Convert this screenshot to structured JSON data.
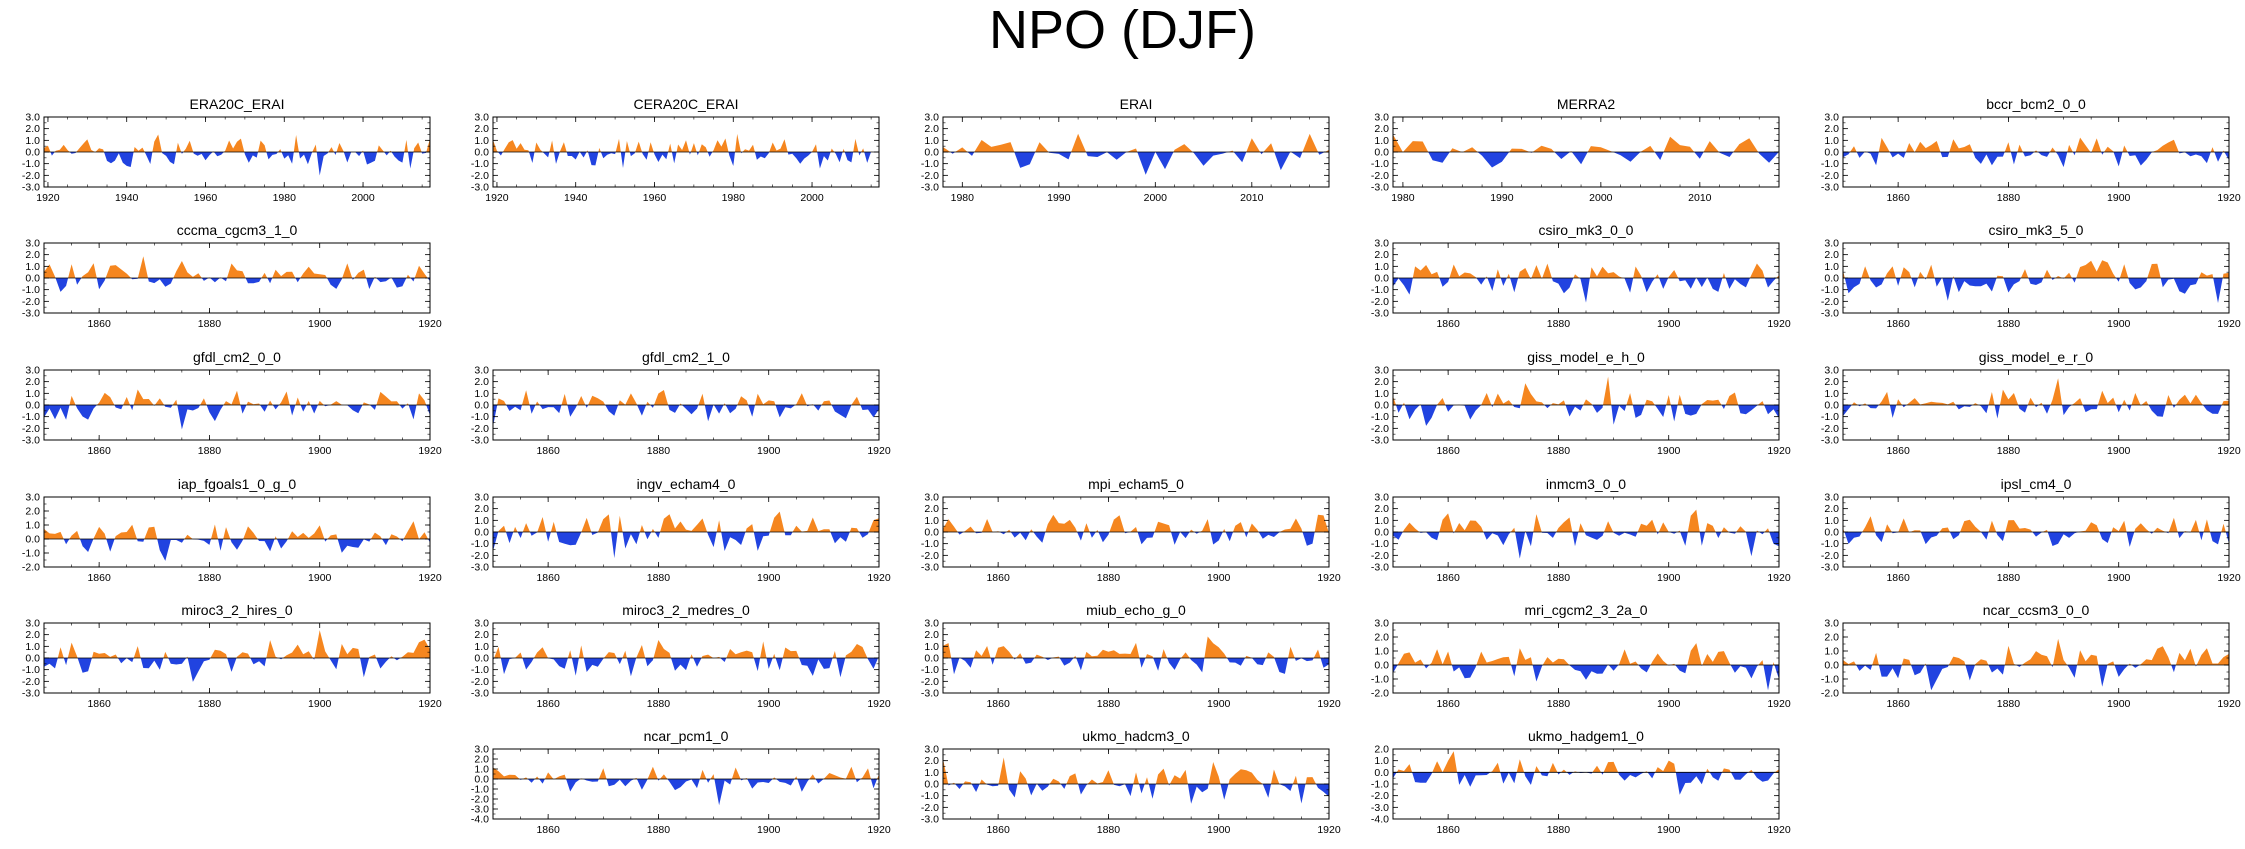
{
  "title": "NPO (DJF)",
  "colors": {
    "positive": "#f5861f",
    "negative": "#2143e0",
    "frame": "#000000",
    "zero_line": "#000000"
  },
  "chart_data": [
    {
      "type": "area",
      "row": 0,
      "col": 0,
      "title": "ERA20C_ERAI",
      "x_range": [
        1919,
        2017
      ],
      "x_ticks": [
        1920,
        1940,
        1960,
        1980,
        2000
      ],
      "y_ticks": [
        "3.0",
        "2.0",
        "1.0",
        "0.0",
        "-1.0",
        "-2.0",
        "-3.0"
      ],
      "ylim": [
        -3,
        3
      ],
      "seed": 11,
      "amp": 0.9,
      "step": 1,
      "bias": 0.02
    },
    {
      "type": "area",
      "row": 0,
      "col": 1,
      "title": "CERA20C_ERAI",
      "x_range": [
        1919,
        2017
      ],
      "x_ticks": [
        1920,
        1940,
        1960,
        1980,
        2000
      ],
      "y_ticks": [
        "3.0",
        "2.0",
        "1.0",
        "0.0",
        "-1.0",
        "-2.0",
        "-3.0"
      ],
      "ylim": [
        -3,
        3
      ],
      "seed": 23,
      "amp": 0.9,
      "step": 1,
      "bias": 0.02
    },
    {
      "type": "area",
      "row": 0,
      "col": 2,
      "title": "ERAI",
      "x_range": [
        1978,
        2018
      ],
      "x_ticks": [
        1980,
        1990,
        2000,
        2010
      ],
      "y_ticks": [
        "3.0",
        "2.0",
        "1.0",
        "0.0",
        "-1.0",
        "-2.0",
        "-3.0"
      ],
      "ylim": [
        -3,
        3
      ],
      "seed": 37,
      "amp": 1.2,
      "step": 1,
      "bias": 0
    },
    {
      "type": "area",
      "row": 0,
      "col": 3,
      "title": "MERRA2",
      "x_range": [
        1979,
        2018
      ],
      "x_ticks": [
        1980,
        1990,
        2000,
        2010
      ],
      "y_ticks": [
        "3.0",
        "2.0",
        "1.0",
        "0.0",
        "-1.0",
        "-2.0",
        "-3.0"
      ],
      "ylim": [
        -3,
        3
      ],
      "seed": 41,
      "amp": 1.2,
      "step": 1,
      "bias": 0
    },
    {
      "type": "area",
      "row": 0,
      "col": 4,
      "title": "bccr_bcm2_0_0",
      "x_range": [
        1850,
        1920
      ],
      "x_ticks": [
        1860,
        1880,
        1900,
        1920
      ],
      "y_ticks": [
        "3.0",
        "2.0",
        "1.0",
        "0.0",
        "-1.0",
        "-2.0",
        "-3.0"
      ],
      "ylim": [
        -3,
        3
      ],
      "seed": 53,
      "amp": 1.0,
      "step": 1,
      "bias": 0
    },
    {
      "type": "area",
      "row": 1,
      "col": 0,
      "title": "cccma_cgcm3_1_0",
      "x_range": [
        1850,
        1920
      ],
      "x_ticks": [
        1860,
        1880,
        1900,
        1920
      ],
      "y_ticks": [
        "3.0",
        "2.0",
        "1.0",
        "0.0",
        "-1.0",
        "-2.0",
        "-3.0"
      ],
      "ylim": [
        -3,
        3
      ],
      "seed": 61,
      "amp": 1.0,
      "step": 1,
      "bias": 0
    },
    {
      "type": "area",
      "row": 1,
      "col": 3,
      "title": "csiro_mk3_0_0",
      "x_range": [
        1850,
        1920
      ],
      "x_ticks": [
        1860,
        1880,
        1900,
        1920
      ],
      "y_ticks": [
        "3.0",
        "2.0",
        "1.0",
        "0.0",
        "-1.0",
        "-2.0",
        "-3.0"
      ],
      "ylim": [
        -3,
        3
      ],
      "seed": 71,
      "amp": 1.0,
      "step": 1,
      "bias": 0
    },
    {
      "type": "area",
      "row": 1,
      "col": 4,
      "title": "csiro_mk3_5_0",
      "x_range": [
        1850,
        1920
      ],
      "x_ticks": [
        1860,
        1880,
        1900,
        1920
      ],
      "y_ticks": [
        "3.0",
        "2.0",
        "1.0",
        "0.0",
        "-1.0",
        "-2.0",
        "-3.0"
      ],
      "ylim": [
        -3,
        3
      ],
      "seed": 79,
      "amp": 1.0,
      "step": 1,
      "bias": 0
    },
    {
      "type": "area",
      "row": 2,
      "col": 0,
      "title": "gfdl_cm2_0_0",
      "x_range": [
        1850,
        1920
      ],
      "x_ticks": [
        1860,
        1880,
        1900,
        1920
      ],
      "y_ticks": [
        "3.0",
        "2.0",
        "1.0",
        "0.0",
        "-1.0",
        "-2.0",
        "-3.0"
      ],
      "ylim": [
        -3,
        3
      ],
      "seed": 83,
      "amp": 1.0,
      "step": 1,
      "bias": 0
    },
    {
      "type": "area",
      "row": 2,
      "col": 1,
      "title": "gfdl_cm2_1_0",
      "x_range": [
        1850,
        1920
      ],
      "x_ticks": [
        1860,
        1880,
        1900,
        1920
      ],
      "y_ticks": [
        "3.0",
        "2.0",
        "1.0",
        "0.0",
        "-1.0",
        "-2.0",
        "-3.0"
      ],
      "ylim": [
        -3,
        3
      ],
      "seed": 89,
      "amp": 1.0,
      "step": 1,
      "bias": 0
    },
    {
      "type": "area",
      "row": 2,
      "col": 3,
      "title": "giss_model_e_h_0",
      "x_range": [
        1850,
        1920
      ],
      "x_ticks": [
        1860,
        1880,
        1900,
        1920
      ],
      "y_ticks": [
        "3.0",
        "2.0",
        "1.0",
        "0.0",
        "-1.0",
        "-2.0",
        "-3.0"
      ],
      "ylim": [
        -3,
        3
      ],
      "seed": 97,
      "amp": 1.0,
      "step": 1,
      "bias": 0
    },
    {
      "type": "area",
      "row": 2,
      "col": 4,
      "title": "giss_model_e_r_0",
      "x_range": [
        1850,
        1920
      ],
      "x_ticks": [
        1860,
        1880,
        1900,
        1920
      ],
      "y_ticks": [
        "3.0",
        "2.0",
        "1.0",
        "0.0",
        "-1.0",
        "-2.0",
        "-3.0"
      ],
      "ylim": [
        -3,
        3
      ],
      "seed": 101,
      "amp": 1.0,
      "step": 1,
      "bias": 0
    },
    {
      "type": "area",
      "row": 3,
      "col": 0,
      "title": "iap_fgoals1_0_g_0",
      "x_range": [
        1850,
        1920
      ],
      "x_ticks": [
        1860,
        1880,
        1900,
        1920
      ],
      "y_ticks": [
        "3.0",
        "2.0",
        "1.0",
        "0.0",
        "-1.0",
        "-2.0"
      ],
      "ylim": [
        -2,
        3
      ],
      "seed": 103,
      "amp": 0.9,
      "step": 1,
      "bias": 0
    },
    {
      "type": "area",
      "row": 3,
      "col": 1,
      "title": "ingv_echam4_0",
      "x_range": [
        1850,
        1920
      ],
      "x_ticks": [
        1860,
        1880,
        1900,
        1920
      ],
      "y_ticks": [
        "3.0",
        "2.0",
        "1.0",
        "0.0",
        "-1.0",
        "-2.0",
        "-3.0"
      ],
      "ylim": [
        -3,
        3
      ],
      "seed": 107,
      "amp": 1.0,
      "step": 1,
      "bias": 0
    },
    {
      "type": "area",
      "row": 3,
      "col": 2,
      "title": "mpi_echam5_0",
      "x_range": [
        1850,
        1920
      ],
      "x_ticks": [
        1860,
        1880,
        1900,
        1920
      ],
      "y_ticks": [
        "3.0",
        "2.0",
        "1.0",
        "0.0",
        "-1.0",
        "-2.0",
        "-3.0"
      ],
      "ylim": [
        -3,
        3
      ],
      "seed": 109,
      "amp": 1.0,
      "step": 1,
      "bias": 0
    },
    {
      "type": "area",
      "row": 3,
      "col": 3,
      "title": "inmcm3_0_0",
      "x_range": [
        1850,
        1920
      ],
      "x_ticks": [
        1860,
        1880,
        1900,
        1920
      ],
      "y_ticks": [
        "3.0",
        "2.0",
        "1.0",
        "0.0",
        "-1.0",
        "-2.0",
        "-3.0"
      ],
      "ylim": [
        -3,
        3
      ],
      "seed": 113,
      "amp": 1.0,
      "step": 1,
      "bias": 0
    },
    {
      "type": "area",
      "row": 3,
      "col": 4,
      "title": "ipsl_cm4_0",
      "x_range": [
        1850,
        1920
      ],
      "x_ticks": [
        1860,
        1880,
        1900,
        1920
      ],
      "y_ticks": [
        "3.0",
        "2.0",
        "1.0",
        "0.0",
        "-1.0",
        "-2.0",
        "-3.0"
      ],
      "ylim": [
        -3,
        3
      ],
      "seed": 127,
      "amp": 1.0,
      "step": 1,
      "bias": 0
    },
    {
      "type": "area",
      "row": 4,
      "col": 0,
      "title": "miroc3_2_hires_0",
      "x_range": [
        1850,
        1920
      ],
      "x_ticks": [
        1860,
        1880,
        1900,
        1920
      ],
      "y_ticks": [
        "3.0",
        "2.0",
        "1.0",
        "0.0",
        "-1.0",
        "-2.0",
        "-3.0"
      ],
      "ylim": [
        -3,
        3
      ],
      "seed": 131,
      "amp": 1.0,
      "step": 1,
      "bias": 0
    },
    {
      "type": "area",
      "row": 4,
      "col": 1,
      "title": "miroc3_2_medres_0",
      "x_range": [
        1850,
        1920
      ],
      "x_ticks": [
        1860,
        1880,
        1900,
        1920
      ],
      "y_ticks": [
        "3.0",
        "2.0",
        "1.0",
        "0.0",
        "-1.0",
        "-2.0",
        "-3.0"
      ],
      "ylim": [
        -3,
        3
      ],
      "seed": 137,
      "amp": 1.0,
      "step": 1,
      "bias": 0
    },
    {
      "type": "area",
      "row": 4,
      "col": 2,
      "title": "miub_echo_g_0",
      "x_range": [
        1850,
        1920
      ],
      "x_ticks": [
        1860,
        1880,
        1900,
        1920
      ],
      "y_ticks": [
        "3.0",
        "2.0",
        "1.0",
        "0.0",
        "-1.0",
        "-2.0",
        "-3.0"
      ],
      "ylim": [
        -3,
        3
      ],
      "seed": 139,
      "amp": 1.0,
      "step": 1,
      "bias": 0
    },
    {
      "type": "area",
      "row": 4,
      "col": 3,
      "title": "mri_cgcm2_3_2a_0",
      "x_range": [
        1850,
        1920
      ],
      "x_ticks": [
        1860,
        1880,
        1900,
        1920
      ],
      "y_ticks": [
        "3.0",
        "2.0",
        "1.0",
        "0.0",
        "-1.0",
        "-2.0"
      ],
      "ylim": [
        -2,
        3
      ],
      "seed": 149,
      "amp": 0.9,
      "step": 1,
      "bias": 0
    },
    {
      "type": "area",
      "row": 4,
      "col": 4,
      "title": "ncar_ccsm3_0_0",
      "x_range": [
        1850,
        1920
      ],
      "x_ticks": [
        1860,
        1880,
        1900,
        1920
      ],
      "y_ticks": [
        "3.0",
        "2.0",
        "1.0",
        "0.0",
        "-1.0",
        "-2.0"
      ],
      "ylim": [
        -2,
        3
      ],
      "seed": 151,
      "amp": 0.9,
      "step": 1,
      "bias": 0
    },
    {
      "type": "area",
      "row": 5,
      "col": 1,
      "title": "ncar_pcm1_0",
      "x_range": [
        1850,
        1920
      ],
      "x_ticks": [
        1860,
        1880,
        1900,
        1920
      ],
      "y_ticks": [
        "3.0",
        "2.0",
        "1.0",
        "0.0",
        "-1.0",
        "-2.0",
        "-3.0",
        "-4.0"
      ],
      "ylim": [
        -4,
        3
      ],
      "seed": 157,
      "amp": 1.0,
      "step": 1,
      "bias": 0
    },
    {
      "type": "area",
      "row": 5,
      "col": 2,
      "title": "ukmo_hadcm3_0",
      "x_range": [
        1850,
        1920
      ],
      "x_ticks": [
        1860,
        1880,
        1900,
        1920
      ],
      "y_ticks": [
        "3.0",
        "2.0",
        "1.0",
        "0.0",
        "-1.0",
        "-2.0",
        "-3.0"
      ],
      "ylim": [
        -3,
        3
      ],
      "seed": 163,
      "amp": 1.0,
      "step": 1,
      "bias": 0
    },
    {
      "type": "area",
      "row": 5,
      "col": 3,
      "title": "ukmo_hadgem1_0",
      "x_range": [
        1850,
        1920
      ],
      "x_ticks": [
        1860,
        1880,
        1900,
        1920
      ],
      "y_ticks": [
        "2.0",
        "1.0",
        "0.0",
        "-1.0",
        "-2.0",
        "-3.0",
        "-4.0"
      ],
      "ylim": [
        -4,
        2
      ],
      "seed": 167,
      "amp": 1.0,
      "step": 1,
      "bias": 0
    }
  ]
}
